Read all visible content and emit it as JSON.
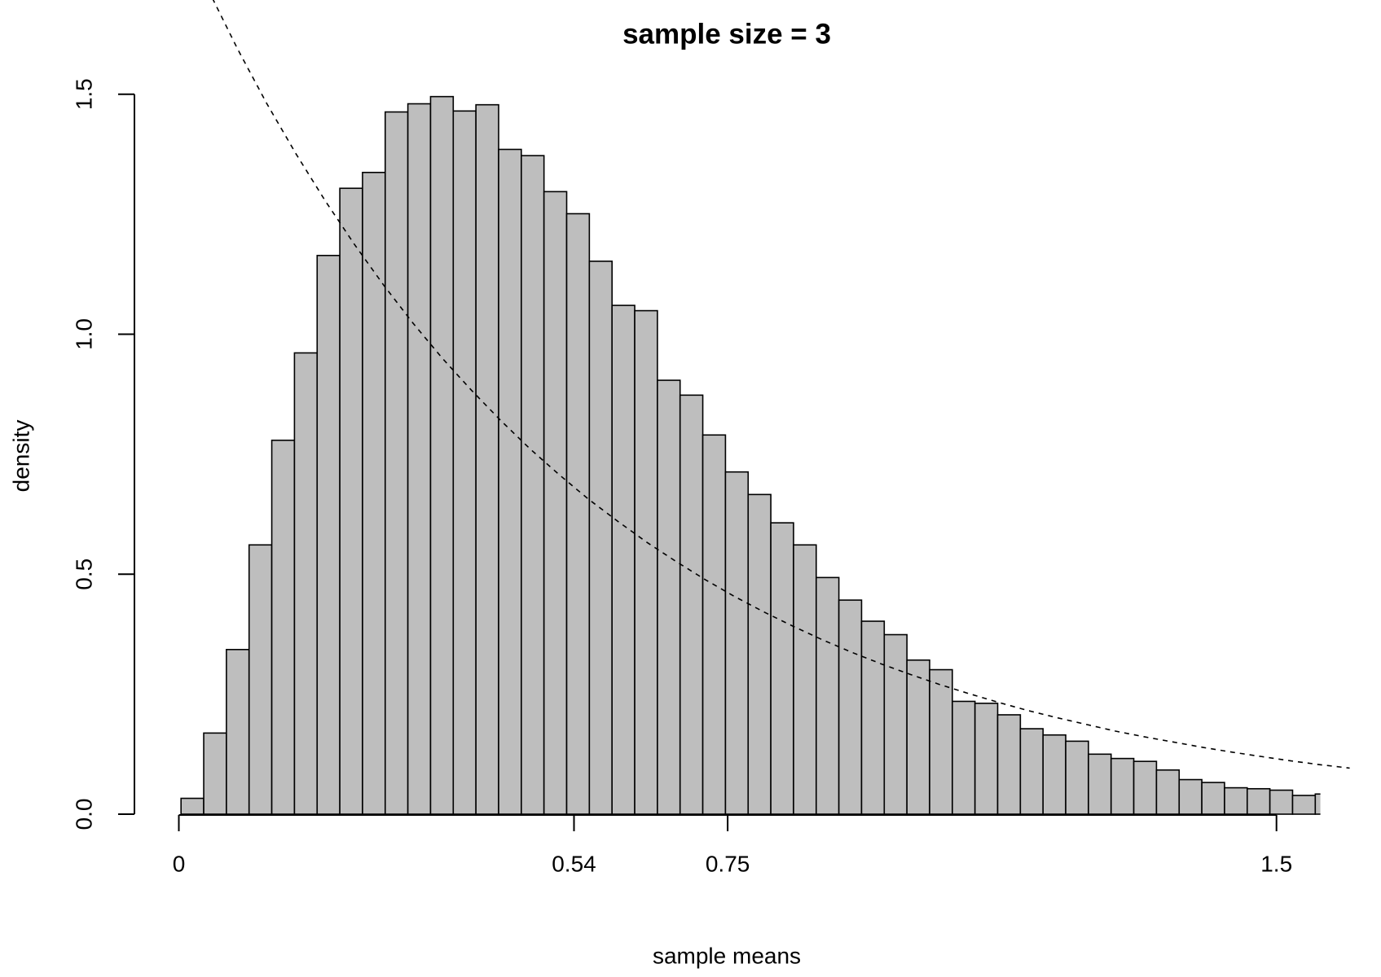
{
  "chart_data": {
    "type": "histogram",
    "title": "sample size = 3",
    "x_label": "sample means",
    "y_label": "density",
    "bins": [
      0.003,
      0.034,
      0.065,
      0.096,
      0.127,
      0.158,
      0.189,
      0.22,
      0.251,
      0.282,
      0.313,
      0.344,
      0.375,
      0.406,
      0.437,
      0.468,
      0.499,
      0.53,
      0.561,
      0.592,
      0.623,
      0.654,
      0.685,
      0.716,
      0.747,
      0.778,
      0.809,
      0.84,
      0.871,
      0.902,
      0.933,
      0.964,
      0.995,
      1.026,
      1.057,
      1.088,
      1.119,
      1.15,
      1.181,
      1.212,
      1.243,
      1.274,
      1.305,
      1.336,
      1.367,
      1.398,
      1.429,
      1.46,
      1.491,
      1.522,
      1.553,
      1.584
    ],
    "values": [
      0.033,
      0.169,
      0.343,
      0.561,
      0.779,
      0.961,
      1.164,
      1.304,
      1.337,
      1.463,
      1.48,
      1.495,
      1.465,
      1.478,
      1.385,
      1.372,
      1.297,
      1.251,
      1.152,
      1.06,
      1.049,
      0.904,
      0.873,
      0.79,
      0.713,
      0.666,
      0.607,
      0.561,
      0.493,
      0.446,
      0.402,
      0.374,
      0.321,
      0.301,
      0.235,
      0.231,
      0.207,
      0.178,
      0.165,
      0.152,
      0.125,
      0.116,
      0.11,
      0.092,
      0.072,
      0.066,
      0.055,
      0.053,
      0.05,
      0.039,
      0.042
    ],
    "color": "#bebebe",
    "line": {
      "x": [
        0.04,
        0.08,
        0.12,
        0.16,
        0.2,
        0.24,
        0.28,
        0.32,
        0.36,
        0.4,
        0.44,
        0.48,
        0.52,
        0.56,
        0.6,
        0.64,
        0.68,
        0.72,
        0.76,
        0.8,
        0.84,
        0.88,
        0.92,
        0.96,
        1.0,
        1.04,
        1.08,
        1.12,
        1.16,
        1.2,
        1.24,
        1.28,
        1.32,
        1.36,
        1.4,
        1.44,
        1.48,
        1.52,
        1.56,
        1.6
      ],
      "values": [
        1.718,
        1.595,
        1.481,
        1.376,
        1.278,
        1.187,
        1.102,
        1.023,
        0.95,
        0.883,
        0.82,
        0.761,
        0.707,
        0.656,
        0.61,
        0.566,
        0.526,
        0.488,
        0.453,
        0.421,
        0.391,
        0.363,
        0.337,
        0.313,
        0.291,
        0.27,
        0.251,
        0.233,
        0.216,
        0.201,
        0.187,
        0.173,
        0.161,
        0.15,
        0.139,
        0.129,
        0.12,
        0.111,
        0.103,
        0.096
      ],
      "color": "#000000",
      "style": "dashed"
    },
    "xlim": [
      0,
      1.56
    ],
    "ylim": [
      0,
      1.5
    ],
    "xticks": [
      0,
      0.54,
      0.75,
      1.5
    ],
    "yticks": [
      {
        "value": 0,
        "label": "0.0"
      },
      {
        "value": 0.5,
        "label": "0.5"
      },
      {
        "value": 1,
        "label": "1.0"
      },
      {
        "value": 1.5,
        "label": "1.5"
      }
    ]
  }
}
